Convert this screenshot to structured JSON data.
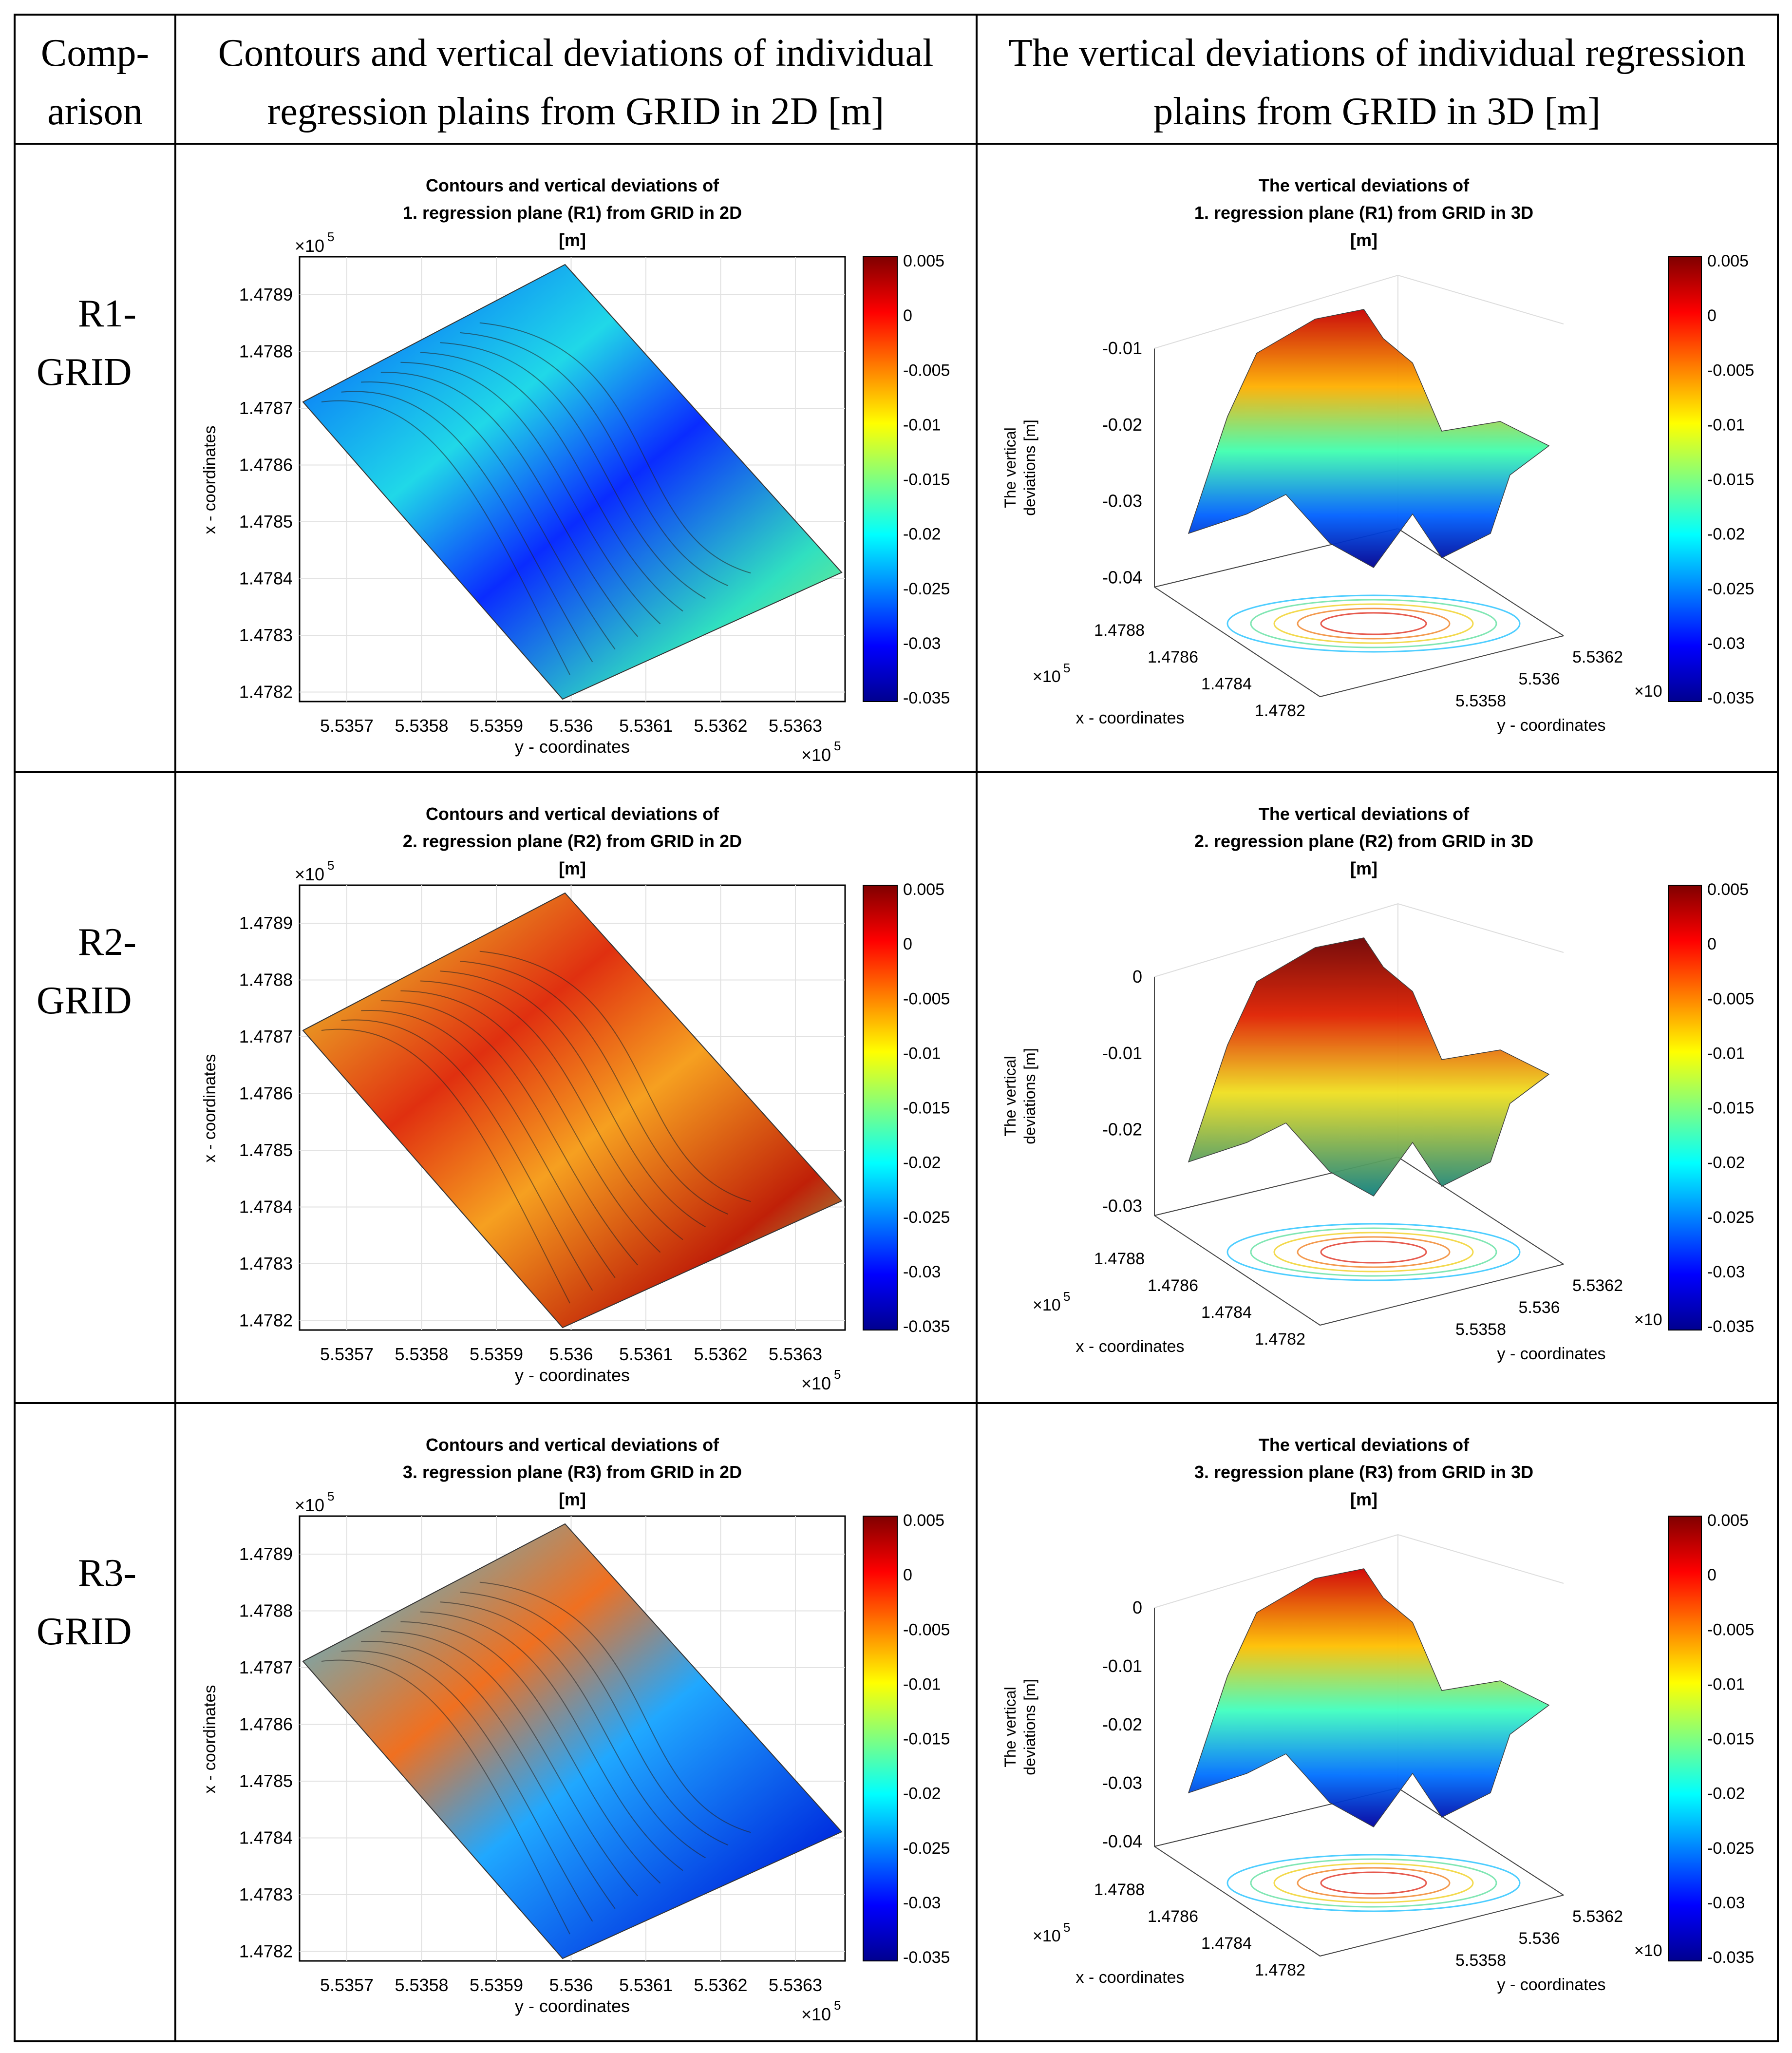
{
  "table": {
    "headers": [
      {
        "lines": [
          "Comp-",
          "arison"
        ]
      },
      {
        "lines": [
          "Contours and vertical deviations of individual",
          "regression plains from GRID in 2D [m]"
        ]
      },
      {
        "lines": [
          "The vertical deviations of individual regression",
          "plains from GRID in 3D [m]"
        ]
      }
    ],
    "rows": [
      {
        "label": [
          "R1-",
          "GRID"
        ],
        "plot2d": {
          "title": [
            "Contours and vertical deviations of",
            "1. regression plane (R1) from GRID in 2D",
            "[m]"
          ]
        },
        "plot3d": {
          "title": [
            "The vertical deviations of",
            "1. regression plane (R1) from GRID in 3D",
            "[m]"
          ],
          "zticks": [
            "-0.01",
            "-0.02",
            "-0.03",
            "-0.04"
          ]
        }
      },
      {
        "label": [
          "R2-",
          "GRID"
        ],
        "plot2d": {
          "title": [
            "Contours and vertical deviations of",
            "2. regression plane (R2) from GRID in 2D",
            "[m]"
          ]
        },
        "plot3d": {
          "title": [
            "The vertical deviations of",
            "2. regression plane (R2) from GRID in 3D",
            "[m]"
          ],
          "zticks": [
            "0",
            "-0.01",
            "-0.02",
            "-0.03"
          ]
        }
      },
      {
        "label": [
          "R3-",
          "GRID"
        ],
        "plot2d": {
          "title": [
            "Contours and vertical deviations of",
            "3. regression plane (R3) from GRID in 2D",
            "[m]"
          ]
        },
        "plot3d": {
          "title": [
            "The vertical deviations of",
            "3. regression plane (R3) from GRID in 3D",
            "[m]"
          ],
          "zticks": [
            "0",
            "-0.01",
            "-0.02",
            "-0.03",
            "-0.04"
          ]
        }
      }
    ]
  },
  "axes2d": {
    "xlabel": "y - coordinates",
    "ylabel": "x - coordinates",
    "xticks": [
      "5.5357",
      "5.5358",
      "5.5359",
      "5.536",
      "5.5361",
      "5.5362",
      "5.5363"
    ],
    "yticks": [
      "1.4789",
      "1.4788",
      "1.4787",
      "1.4786",
      "1.4785",
      "1.4784",
      "1.4783",
      "1.4782"
    ],
    "xexp": "×10",
    "yexp": "×10",
    "xexp_power": "5",
    "yexp_power": "5"
  },
  "axes3d": {
    "zlabel": [
      "The vertical",
      "deviations [m]"
    ],
    "xlabel": "x - coordinates",
    "ylabel": "y - coordinates",
    "xticks": [
      "1.4788",
      "1.4786",
      "1.4784",
      "1.4782"
    ],
    "yticks": [
      "5.5362",
      "5.536",
      "5.5358"
    ],
    "xexp": "×10",
    "xexp_power": "5",
    "yexp_cut": "×10"
  },
  "colorbar": {
    "ticks": [
      "0.005",
      "0",
      "-0.005",
      "-0.01",
      "-0.015",
      "-0.02",
      "-0.025",
      "-0.03",
      "-0.035"
    ],
    "range": [
      -0.035,
      0.005
    ]
  }
}
